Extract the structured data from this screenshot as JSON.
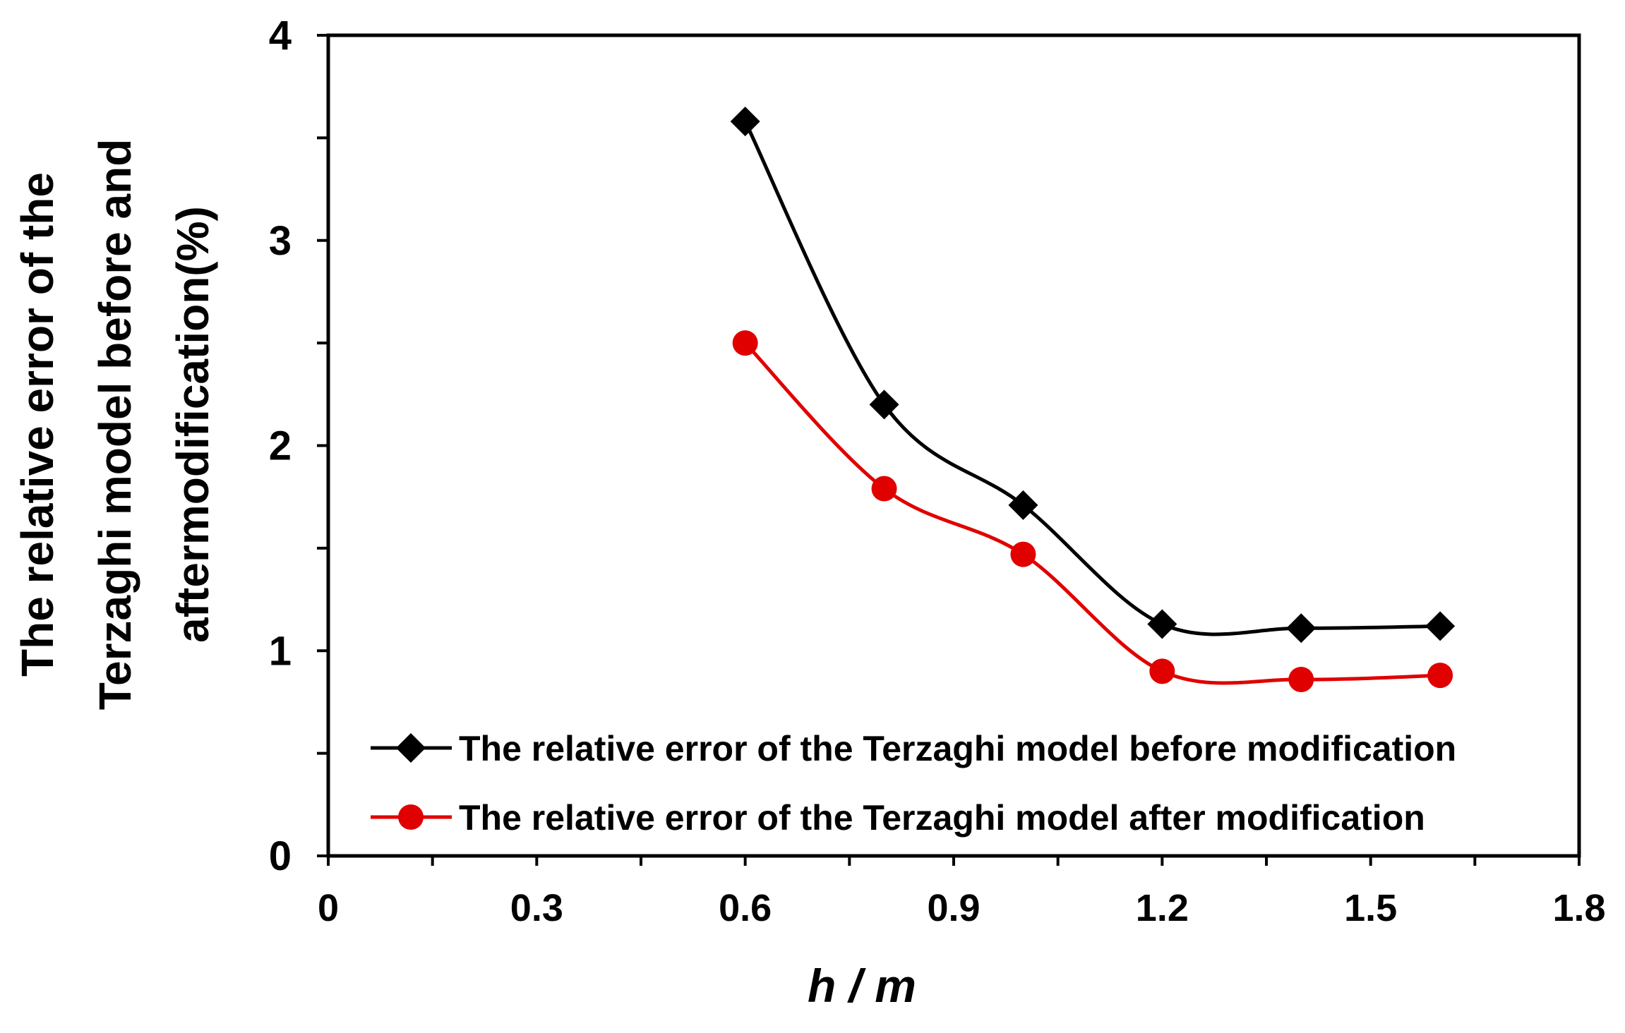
{
  "chart_data": {
    "type": "line",
    "title": "",
    "xlabel": "h / m",
    "ylabel_lines": [
      "The relative error of the",
      "Terzaghi model before and",
      "aftermodification(%)"
    ],
    "xlim": [
      0,
      1.8
    ],
    "ylim": [
      0,
      4
    ],
    "x_major_ticks": [
      0,
      0.3,
      0.6,
      0.9,
      1.2,
      1.5,
      1.8
    ],
    "x_tick_labels": [
      "0",
      "0.3",
      "0.6",
      "0.9",
      "1.2",
      "1.5",
      "1.8"
    ],
    "y_major_ticks": [
      0,
      1,
      2,
      3,
      4
    ],
    "y_tick_labels": [
      "0",
      "1",
      "2",
      "3",
      "4"
    ],
    "grid": false,
    "legend_position": "bottom-left",
    "series": [
      {
        "name": "The relative error of the Terzaghi model before modification",
        "marker": "diamond",
        "color": "#000000",
        "x": [
          0.6,
          0.8,
          1.0,
          1.2,
          1.4,
          1.6
        ],
        "y": [
          3.58,
          2.2,
          1.71,
          1.13,
          1.11,
          1.12
        ]
      },
      {
        "name": "The relative error of the Terzaghi model after modification",
        "marker": "circle",
        "color": "#e00000",
        "x": [
          0.6,
          0.8,
          1.0,
          1.2,
          1.4,
          1.6
        ],
        "y": [
          2.5,
          1.79,
          1.47,
          0.9,
          0.86,
          0.88
        ]
      }
    ]
  }
}
